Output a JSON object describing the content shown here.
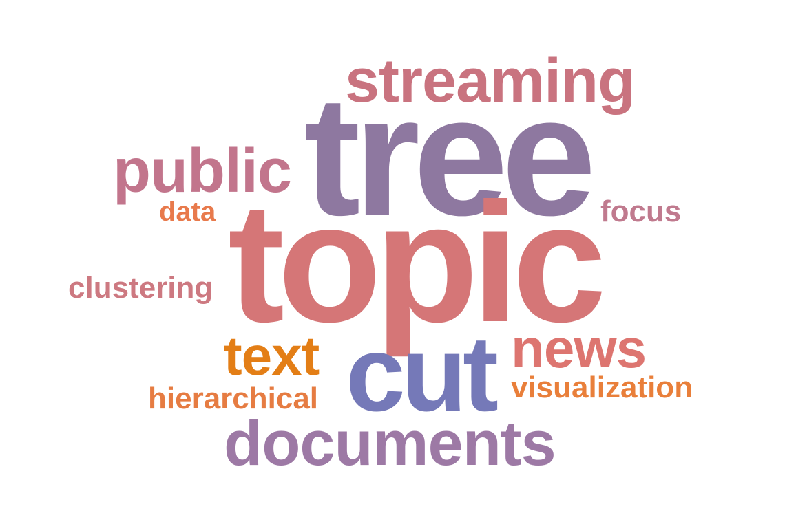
{
  "words": [
    {
      "id": "tree",
      "text": "tree",
      "color": "#8e78a0"
    },
    {
      "id": "topic",
      "text": "topic",
      "color": "#d57677"
    },
    {
      "id": "cut",
      "text": "cut",
      "color": "#7579b8"
    },
    {
      "id": "streaming",
      "text": "streaming",
      "color": "#c9737f"
    },
    {
      "id": "public",
      "text": "public",
      "color": "#c2758c"
    },
    {
      "id": "documents",
      "text": "documents",
      "color": "#9d79a5"
    },
    {
      "id": "news",
      "text": "news",
      "color": "#dd7570"
    },
    {
      "id": "text",
      "text": "text",
      "color": "#e37e16"
    },
    {
      "id": "clustering",
      "text": "clustering",
      "color": "#cd7981"
    },
    {
      "id": "hierarchical",
      "text": "hierarchical",
      "color": "#e67c42"
    },
    {
      "id": "visualization",
      "text": "visualization",
      "color": "#e97f3a"
    },
    {
      "id": "focus",
      "text": "focus",
      "color": "#c07a8e"
    },
    {
      "id": "data",
      "text": "data",
      "color": "#e87a4c"
    }
  ]
}
